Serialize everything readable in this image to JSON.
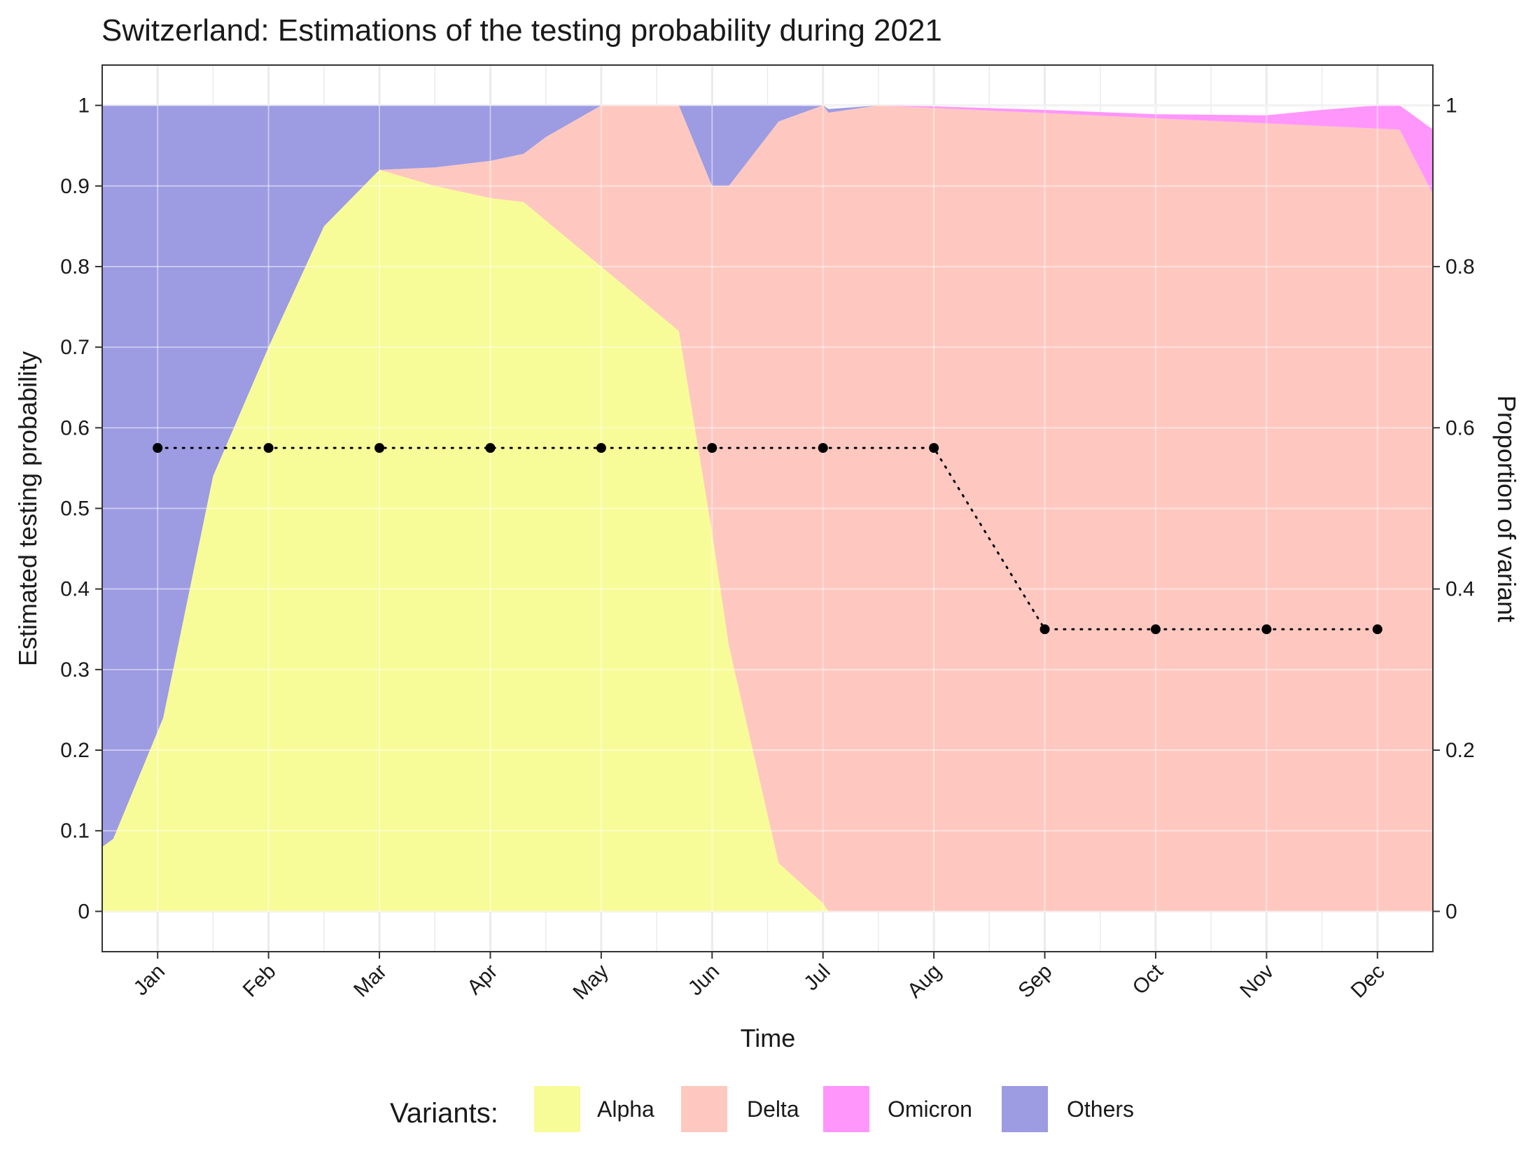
{
  "chart_data": {
    "type": "area",
    "title": "Switzerland: Estimations of the testing probability during 2021",
    "xlabel": "Time",
    "ylabel": "Estimated testing probability",
    "y2label": "Proportion of variant",
    "x_categories": [
      "Jan",
      "Feb",
      "Mar",
      "Apr",
      "May",
      "Jun",
      "Jul",
      "Aug",
      "Sep",
      "Oct",
      "Nov",
      "Dec"
    ],
    "xlim": [
      -0.5,
      11.5
    ],
    "ylim": [
      -0.05,
      1.05
    ],
    "yticks": [
      0,
      0.1,
      0.2,
      0.3,
      0.4,
      0.5,
      0.6,
      0.7,
      0.8,
      0.9,
      1
    ],
    "ytick_labels": [
      "0",
      "0.1",
      "0.2",
      "0.3",
      "0.4",
      "0.5",
      "0.6",
      "0.7",
      "0.8",
      "0.9",
      "1"
    ],
    "y2ticks": [
      0,
      0.2,
      0.4,
      0.6,
      0.8,
      1
    ],
    "y2tick_labels": [
      "0",
      "0.2",
      "0.4",
      "0.6",
      "0.8",
      "1"
    ],
    "grid": true,
    "legend": {
      "title": "Variants:",
      "position": "bottom",
      "items": [
        {
          "name": "Alpha",
          "color": "#F8FC98"
        },
        {
          "name": "Delta",
          "color": "#FEC8C0"
        },
        {
          "name": "Omicron",
          "color": "#FF96FB"
        },
        {
          "name": "Others",
          "color": "#9D9BE2"
        }
      ]
    },
    "variant_proportions": {
      "stack_order": [
        "Alpha",
        "Delta",
        "Omicron",
        "Others"
      ],
      "series": [
        {
          "name": "Alpha",
          "color": "#F8FC98",
          "x": [
            -0.5,
            -0.4,
            0.05,
            0.5,
            1,
            1.5,
            2,
            2.5,
            3,
            3.3,
            4,
            4.7,
            5,
            5.15,
            5.6,
            6,
            6.05,
            11.5
          ],
          "values": [
            0.08,
            0.09,
            0.24,
            0.54,
            0.7,
            0.85,
            0.92,
            0.9,
            0.885,
            0.88,
            0.8,
            0.72,
            0.47,
            0.33,
            0.06,
            0.01,
            0,
            0
          ]
        },
        {
          "name": "Delta",
          "color": "#FEC8C0",
          "x": [
            -0.5,
            2,
            3.3,
            5,
            5.15,
            5.6,
            6,
            6.5,
            11.2,
            11.65,
            11.7,
            12.1,
            12.5
          ],
          "values": [
            0,
            0,
            0.06,
            0.43,
            0.57,
            0.92,
            0.99,
            1.0,
            0.97,
            0.85,
            0.5,
            0.3,
            0.15
          ]
        },
        {
          "name": "Omicron",
          "color": "#FF96FB",
          "x": [
            -0.5,
            6.45,
            7,
            8,
            9,
            10,
            10.5,
            11,
            11.5,
            12,
            12.5
          ],
          "values": [
            0,
            0,
            0.002,
            0.004,
            0.005,
            0.01,
            0.02,
            0.03,
            0.08,
            0.2,
            0.85
          ]
        },
        {
          "name": "Others",
          "color": "#9D9BE2",
          "x": [
            -0.5,
            0,
            3,
            3.5,
            4,
            4.5,
            5,
            5.15,
            5.6,
            6,
            6.5,
            11.5
          ],
          "values": [
            0.92,
            0.9,
            0.08,
            0.06,
            0.075,
            0.09,
            0.1,
            0.1,
            0.02,
            0.005,
            0,
            0
          ]
        }
      ]
    },
    "testing_probability": {
      "style": "dotted line with points",
      "color": "#000000",
      "x": [
        "Jan",
        "Feb",
        "Mar",
        "Apr",
        "May",
        "Jun",
        "Jul",
        "Aug",
        "Sep",
        "Oct",
        "Nov",
        "Dec"
      ],
      "values": [
        0.575,
        0.575,
        0.575,
        0.575,
        0.575,
        0.575,
        0.575,
        0.575,
        0.35,
        0.35,
        0.35,
        0.35
      ]
    }
  }
}
